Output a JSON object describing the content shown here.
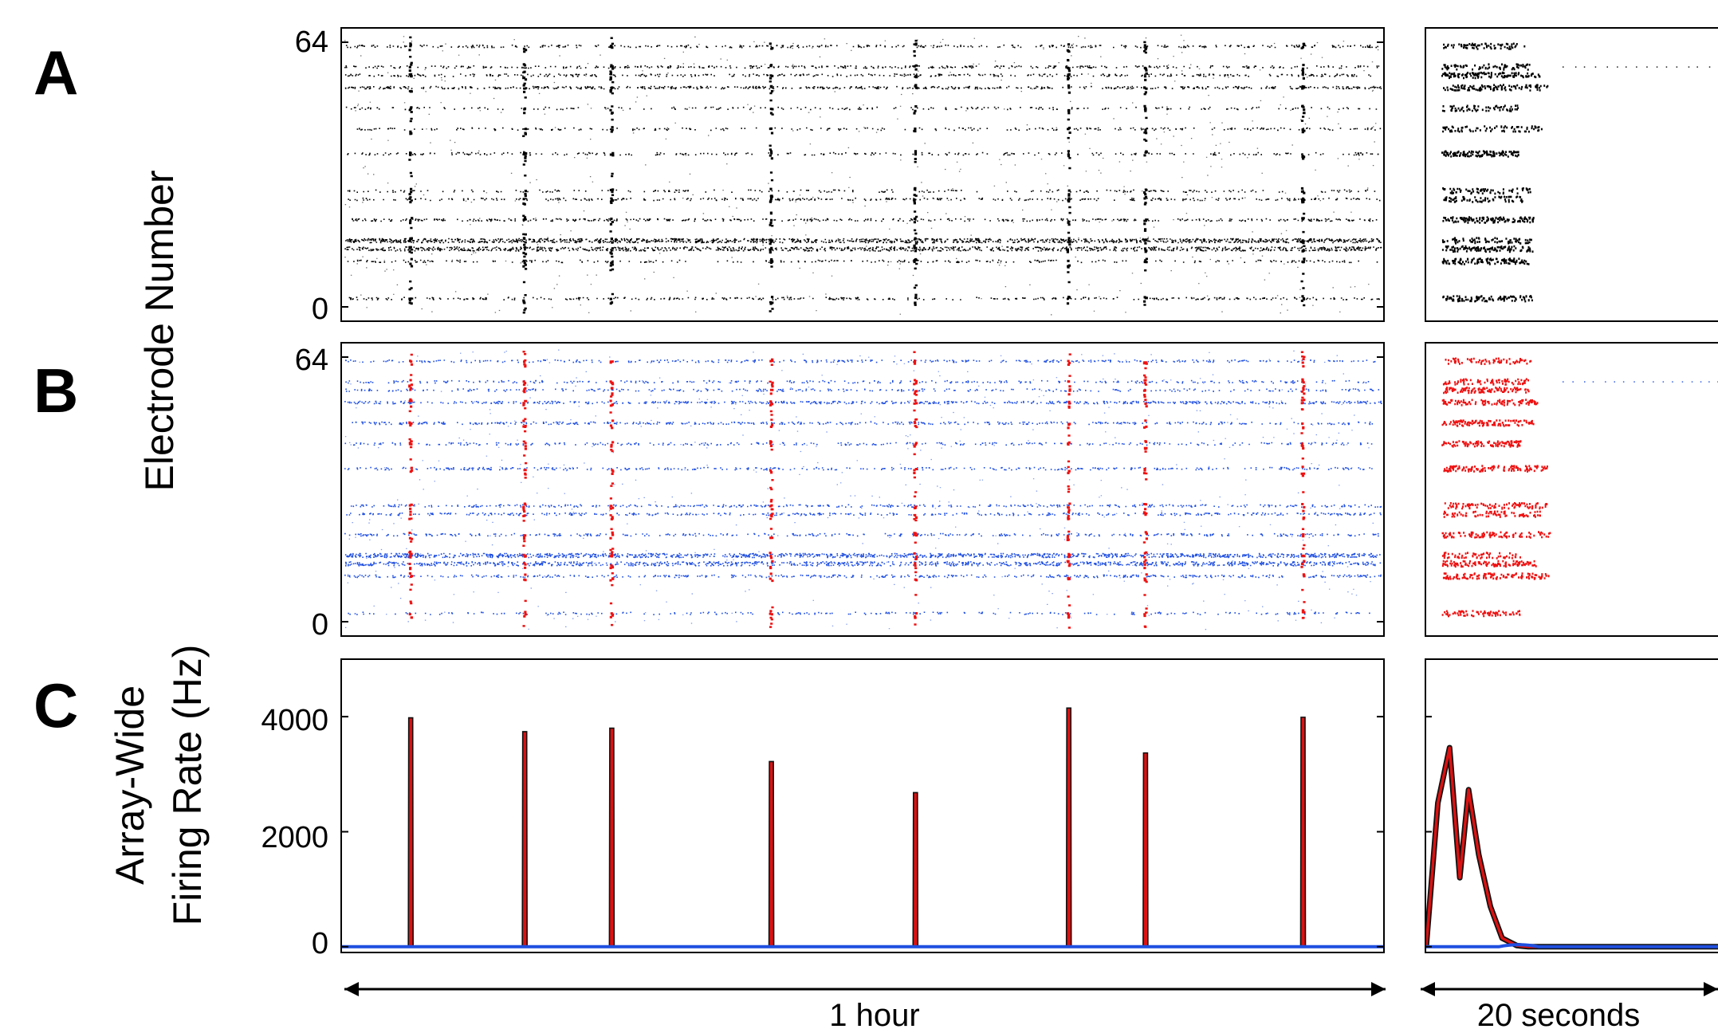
{
  "figure": {
    "panel_labels": [
      "A",
      "B",
      "C"
    ],
    "ylabel_raster": "Electrode Number",
    "ylabel_rate_line1": "Array-Wide",
    "ylabel_rate_line2": "Firing Rate (Hz)",
    "span_long_label": "1 hour",
    "span_short_label": "20 seconds"
  },
  "colors": {
    "raster_spikes": "#000000",
    "non_burst_spikes": "#1f4fe0",
    "burst_spikes": "#ee1111",
    "burst_rate_fill": "#dd1111",
    "burst_rate_edge": "#111111",
    "baseline_rate": "#1f4fe0"
  },
  "chart_data": [
    {
      "type": "scatter",
      "panel": "A",
      "description": "Spike raster, all spikes, 1 hour",
      "ylabel": "Electrode Number",
      "y_ticks": [
        "0",
        "64"
      ],
      "ylim": [
        0,
        64
      ],
      "active_electrodes": [
        2,
        11,
        14,
        16,
        21,
        26,
        28,
        37,
        43,
        48,
        53,
        56,
        58,
        63
      ],
      "burst_times_fraction": [
        0.064,
        0.174,
        0.258,
        0.412,
        0.551,
        0.699,
        0.773,
        0.925
      ]
    },
    {
      "type": "scatter",
      "panel": "B",
      "description": "Spike raster colored by burst membership, 1 hour",
      "y_ticks": [
        "0",
        "64"
      ],
      "ylim": [
        0,
        64
      ],
      "active_electrodes": [
        2,
        11,
        14,
        16,
        21,
        26,
        28,
        37,
        43,
        48,
        53,
        56,
        58,
        63
      ],
      "burst_times_fraction": [
        0.064,
        0.174,
        0.258,
        0.412,
        0.551,
        0.699,
        0.773,
        0.925
      ]
    },
    {
      "type": "line",
      "panel": "C",
      "ylabel": "Array-Wide Firing Rate (Hz)",
      "y_ticks": [
        "0",
        "2000",
        "4000"
      ],
      "ylim": [
        -100,
        5000
      ],
      "burst_times_fraction": [
        0.064,
        0.174,
        0.258,
        0.412,
        0.551,
        0.699,
        0.773,
        0.925
      ],
      "burst_peak_rates": [
        3980,
        3740,
        3800,
        3220,
        2680,
        4150,
        3370,
        3990
      ],
      "baseline_rate": 0
    },
    {
      "type": "line",
      "panel": "C-zoom",
      "description": "Array-wide firing rate over a 20 second window containing one burst",
      "xlim": [
        0,
        20
      ],
      "x": [
        0,
        0.8,
        1.6,
        2.3,
        2.9,
        3.6,
        4.4,
        5.2,
        6.2,
        7.0,
        8.0,
        20
      ],
      "y": [
        0,
        2500,
        3460,
        1200,
        2730,
        1600,
        700,
        150,
        20,
        0,
        0,
        0
      ]
    }
  ]
}
